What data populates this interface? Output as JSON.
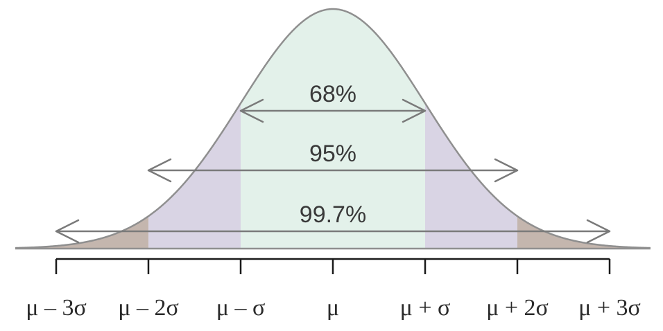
{
  "diagram": {
    "colors": {
      "within_1sd": "#e3f1ea",
      "within_2sd": "#d9d4e4",
      "within_3sd": "#c4b6ae",
      "curve": "#8f8f8f",
      "arrow": "#7a7a7a",
      "axis": "#1a1a1a"
    },
    "intervals": [
      {
        "label": "68%",
        "half_width_sd": 1
      },
      {
        "label": "95%",
        "half_width_sd": 2
      },
      {
        "label": "99.7%",
        "half_width_sd": 3
      }
    ],
    "tick_labels": [
      "μ – 3σ",
      "μ – 2σ",
      "μ – σ",
      "μ",
      "μ + σ",
      "μ + 2σ",
      "μ + 3σ"
    ]
  }
}
